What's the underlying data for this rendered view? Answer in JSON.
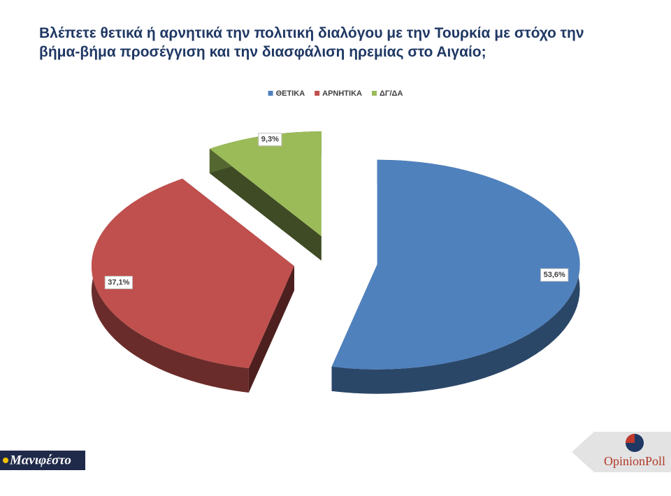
{
  "chart_data": {
    "type": "pie",
    "title": "Βλέπετε θετικά ή αρνητικά την πολιτική διαλόγου με την Τουρκία με στόχο την βήμα-βήμα προσέγγιση και την διασφάλιση ηρεμίας στο Αιγαίο;",
    "categories": [
      "ΘΕΤΙΚΑ",
      "ΑΡΝΗΤΙΚΑ",
      "ΔΓ/ΔΑ"
    ],
    "values": [
      53.6,
      37.1,
      9.3
    ],
    "value_labels": [
      "53,6%",
      "37,1%",
      "9,3%"
    ],
    "colors": [
      "#4f81bd",
      "#c0504d",
      "#9bbb59"
    ],
    "legend": "top"
  },
  "footer": {
    "left_logo": "Μανιφέστο",
    "right_logo": "OpinionPoll"
  }
}
